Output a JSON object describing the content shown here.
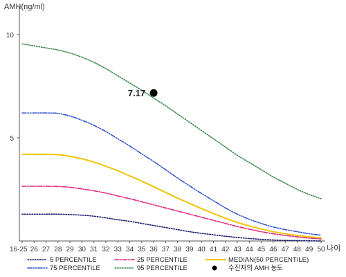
{
  "chart_data": {
    "type": "line",
    "ylabel": "AMH(ng/ml)",
    "xlabel": "나이",
    "ylim": [
      0,
      11
    ],
    "yticks": [
      5,
      10
    ],
    "grid": false,
    "legend_position": "bottom",
    "x": [
      "16-25",
      "26",
      "27",
      "28",
      "29",
      "30",
      "31",
      "32",
      "33",
      "34",
      "35",
      "36",
      "37",
      "38",
      "39",
      "40",
      "41",
      "42",
      "43",
      "44",
      "45",
      "46",
      "47",
      "48",
      "49",
      "50"
    ],
    "series": [
      {
        "name": "5 PERCENTILE",
        "color": "#1a1a6e",
        "dash": "dotted",
        "values": [
          1.3,
          1.3,
          1.3,
          1.3,
          1.28,
          1.25,
          1.2,
          1.12,
          1.03,
          0.95,
          0.85,
          0.75,
          0.65,
          0.55,
          0.45,
          0.37,
          0.3,
          0.23,
          0.17,
          0.12,
          0.08,
          0.05,
          0.03,
          0.02,
          0.01,
          0.0
        ]
      },
      {
        "name": "25 PERCENTILE",
        "color": "#e0207f",
        "dash": "dash-dot",
        "values": [
          2.65,
          2.65,
          2.65,
          2.64,
          2.6,
          2.52,
          2.43,
          2.32,
          2.18,
          2.05,
          1.9,
          1.75,
          1.6,
          1.45,
          1.3,
          1.15,
          1.0,
          0.85,
          0.7,
          0.57,
          0.45,
          0.35,
          0.27,
          0.2,
          0.14,
          0.1
        ]
      },
      {
        "name": "75 PERCENTILE",
        "color": "#3355cc",
        "dash": "dash-dot-dot",
        "values": [
          6.2,
          6.2,
          6.2,
          6.18,
          6.05,
          5.85,
          5.6,
          5.3,
          4.95,
          4.6,
          4.22,
          3.85,
          3.45,
          3.05,
          2.67,
          2.3,
          1.95,
          1.6,
          1.3,
          1.05,
          0.85,
          0.68,
          0.55,
          0.45,
          0.35,
          0.28
        ]
      },
      {
        "name": "95 PERCENTILE",
        "color": "#3a8a4a",
        "dash": "dotted",
        "values": [
          9.55,
          9.45,
          9.35,
          9.25,
          9.1,
          8.9,
          8.65,
          8.35,
          8.0,
          7.65,
          7.3,
          6.92,
          6.55,
          6.15,
          5.75,
          5.35,
          4.95,
          4.55,
          4.15,
          3.8,
          3.45,
          3.1,
          2.8,
          2.5,
          2.25,
          2.05
        ]
      },
      {
        "name": "MEDIAN(50 PERCENTILE)",
        "color": "#f2c200",
        "dash": "solid",
        "values": [
          4.2,
          4.2,
          4.2,
          4.18,
          4.1,
          3.98,
          3.82,
          3.62,
          3.4,
          3.15,
          2.9,
          2.63,
          2.35,
          2.08,
          1.82,
          1.57,
          1.33,
          1.1,
          0.9,
          0.73,
          0.58,
          0.45,
          0.35,
          0.27,
          0.2,
          0.15
        ]
      }
    ],
    "marker": {
      "name": "수진자의 AMH 농도",
      "x": "36",
      "y": 7.17,
      "label": "7.17",
      "color": "#000000"
    },
    "legend": [
      {
        "name": "5 PERCENTILE",
        "color": "#1a1a6e",
        "dash": "dotted",
        "symbol": "line"
      },
      {
        "name": "25 PERCENTILE",
        "color": "#e0207f",
        "dash": "dash-dot",
        "symbol": "line"
      },
      {
        "name": "MEDIAN(50 PERCENTILE)",
        "color": "#f2c200",
        "dash": "solid",
        "symbol": "line"
      },
      {
        "name": "75 PERCENTILE",
        "color": "#3355cc",
        "dash": "dash-dot-dot",
        "symbol": "line"
      },
      {
        "name": "95 PERCENTILE",
        "color": "#3a8a4a",
        "dash": "dotted",
        "symbol": "line"
      },
      {
        "name": "수진자의 AMH 농도",
        "color": "#000000",
        "dash": "none",
        "symbol": "dot"
      }
    ]
  }
}
